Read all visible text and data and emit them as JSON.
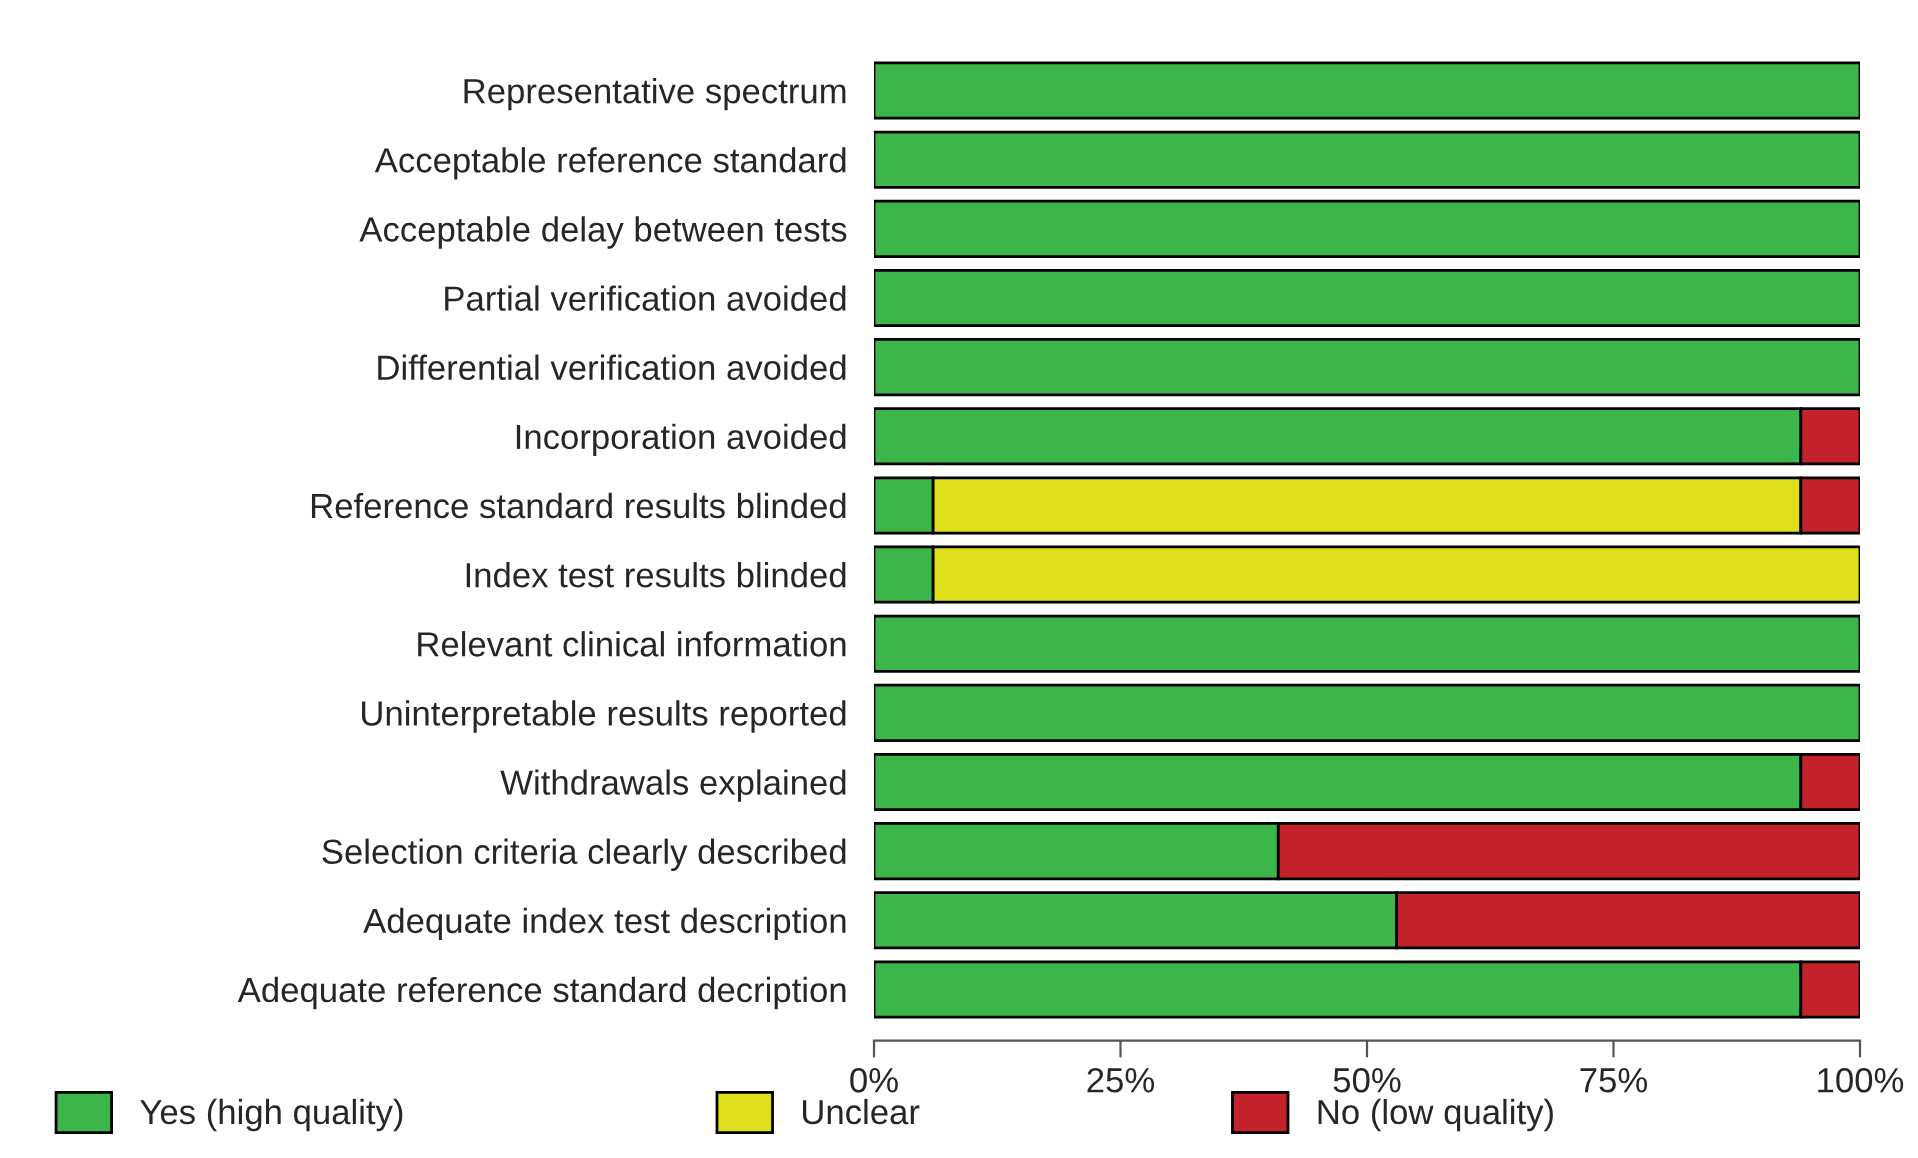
{
  "chart_data": {
    "type": "bar",
    "orientation": "horizontal",
    "stacked": true,
    "categories": [
      "Representative spectrum",
      "Acceptable reference standard",
      "Acceptable delay between tests",
      "Partial verification avoided",
      "Differential verification avoided",
      "Incorporation avoided",
      "Reference standard results blinded",
      "Index test results blinded",
      "Relevant clinical information",
      "Uninterpretable results reported",
      "Withdrawals explained",
      "Selection criteria clearly described",
      "Adequate index test description",
      "Adequate reference standard decription"
    ],
    "series": [
      {
        "name": "Yes (high quality)",
        "color": "#3cb54a",
        "values": [
          100,
          100,
          100,
          100,
          100,
          94,
          6,
          6,
          100,
          100,
          94,
          41,
          53,
          94
        ]
      },
      {
        "name": "Unclear",
        "color": "#dde01a",
        "values": [
          null,
          null,
          null,
          null,
          null,
          null,
          88,
          94,
          null,
          null,
          null,
          null,
          null,
          null
        ]
      },
      {
        "name": "No (low quality)",
        "color": "#c4222a",
        "values": [
          null,
          null,
          null,
          null,
          null,
          6,
          6,
          null,
          null,
          null,
          6,
          59,
          47,
          6
        ]
      }
    ],
    "xlim": [
      0,
      100
    ],
    "xticks": [
      {
        "value": 0,
        "label": "0%"
      },
      {
        "value": 25,
        "label": "25%"
      },
      {
        "value": 50,
        "label": "50%"
      },
      {
        "value": 75,
        "label": "75%"
      },
      {
        "value": 100,
        "label": "100%"
      }
    ],
    "grid": false,
    "legend": "bottom"
  }
}
